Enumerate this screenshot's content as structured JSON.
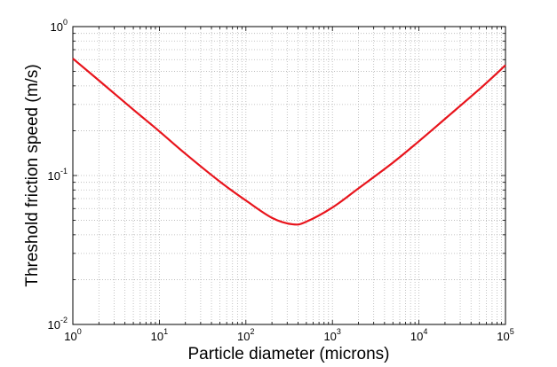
{
  "chart_data": {
    "type": "line",
    "title": "",
    "xlabel": "Particle diameter (microns)",
    "ylabel": "Threshold friction speed (m/s)",
    "xscale": "log",
    "yscale": "log",
    "xlim": [
      1,
      100000
    ],
    "ylim": [
      0.01,
      1
    ],
    "grid": "major and minor, dotted",
    "legend": "none",
    "x_ticks": [
      {
        "base": "10",
        "exp": "0"
      },
      {
        "base": "10",
        "exp": "1"
      },
      {
        "base": "10",
        "exp": "2"
      },
      {
        "base": "10",
        "exp": "3"
      },
      {
        "base": "10",
        "exp": "4"
      },
      {
        "base": "10",
        "exp": "5"
      }
    ],
    "y_ticks": [
      {
        "base": "10",
        "exp": "-2"
      },
      {
        "base": "10",
        "exp": "-1"
      },
      {
        "base": "10",
        "exp": "0"
      }
    ],
    "series": [
      {
        "color": "#e8141c",
        "x": [
          1,
          2,
          5,
          10,
          20,
          50,
          100,
          200,
          350,
          500,
          1000,
          2000,
          5000,
          10000,
          20000,
          50000,
          100000
        ],
        "y": [
          0.61,
          0.435,
          0.277,
          0.198,
          0.14,
          0.091,
          0.068,
          0.052,
          0.047,
          0.049,
          0.061,
          0.082,
          0.122,
          0.17,
          0.24,
          0.38,
          0.55
        ]
      }
    ]
  }
}
